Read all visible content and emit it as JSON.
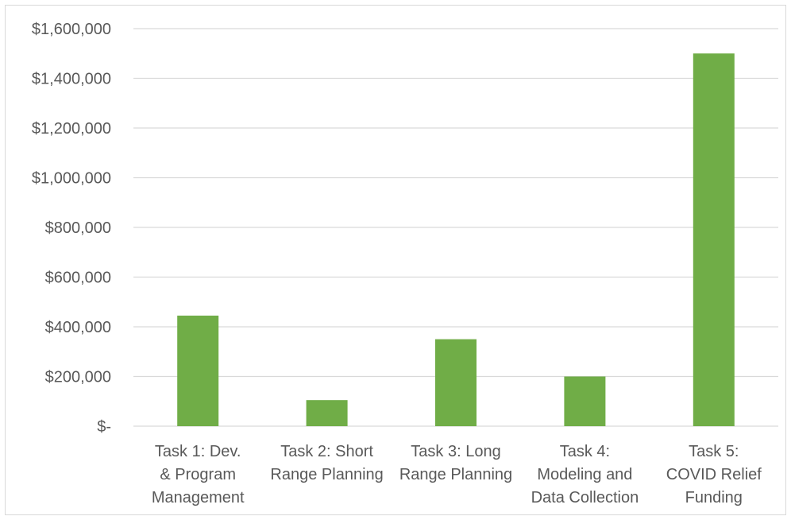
{
  "chart_data": {
    "type": "bar",
    "title": "",
    "xlabel": "",
    "ylabel": "",
    "ylim": [
      0,
      1600000
    ],
    "yticks": [
      0,
      200000,
      400000,
      600000,
      800000,
      1000000,
      1200000,
      1400000,
      1600000
    ],
    "ytick_labels": [
      "$-",
      "$200,000",
      "$400,000",
      "$600,000",
      "$800,000",
      "$1,000,000",
      "$1,200,000",
      "$1,400,000",
      "$1,600,000"
    ],
    "categories": [
      [
        "Task 1:  Dev.",
        "& Program",
        "Management"
      ],
      [
        "Task 2:  Short",
        "Range Planning"
      ],
      [
        "Task 3:  Long",
        "Range Planning"
      ],
      [
        "Task 4:",
        "Modeling and",
        "Data Collection"
      ],
      [
        "Task 5:",
        "COVID Relief",
        "Funding"
      ]
    ],
    "values": [
      445000,
      105000,
      350000,
      200000,
      1500000
    ],
    "bar_color": "#70ad47",
    "grid": true,
    "legend": "none"
  }
}
